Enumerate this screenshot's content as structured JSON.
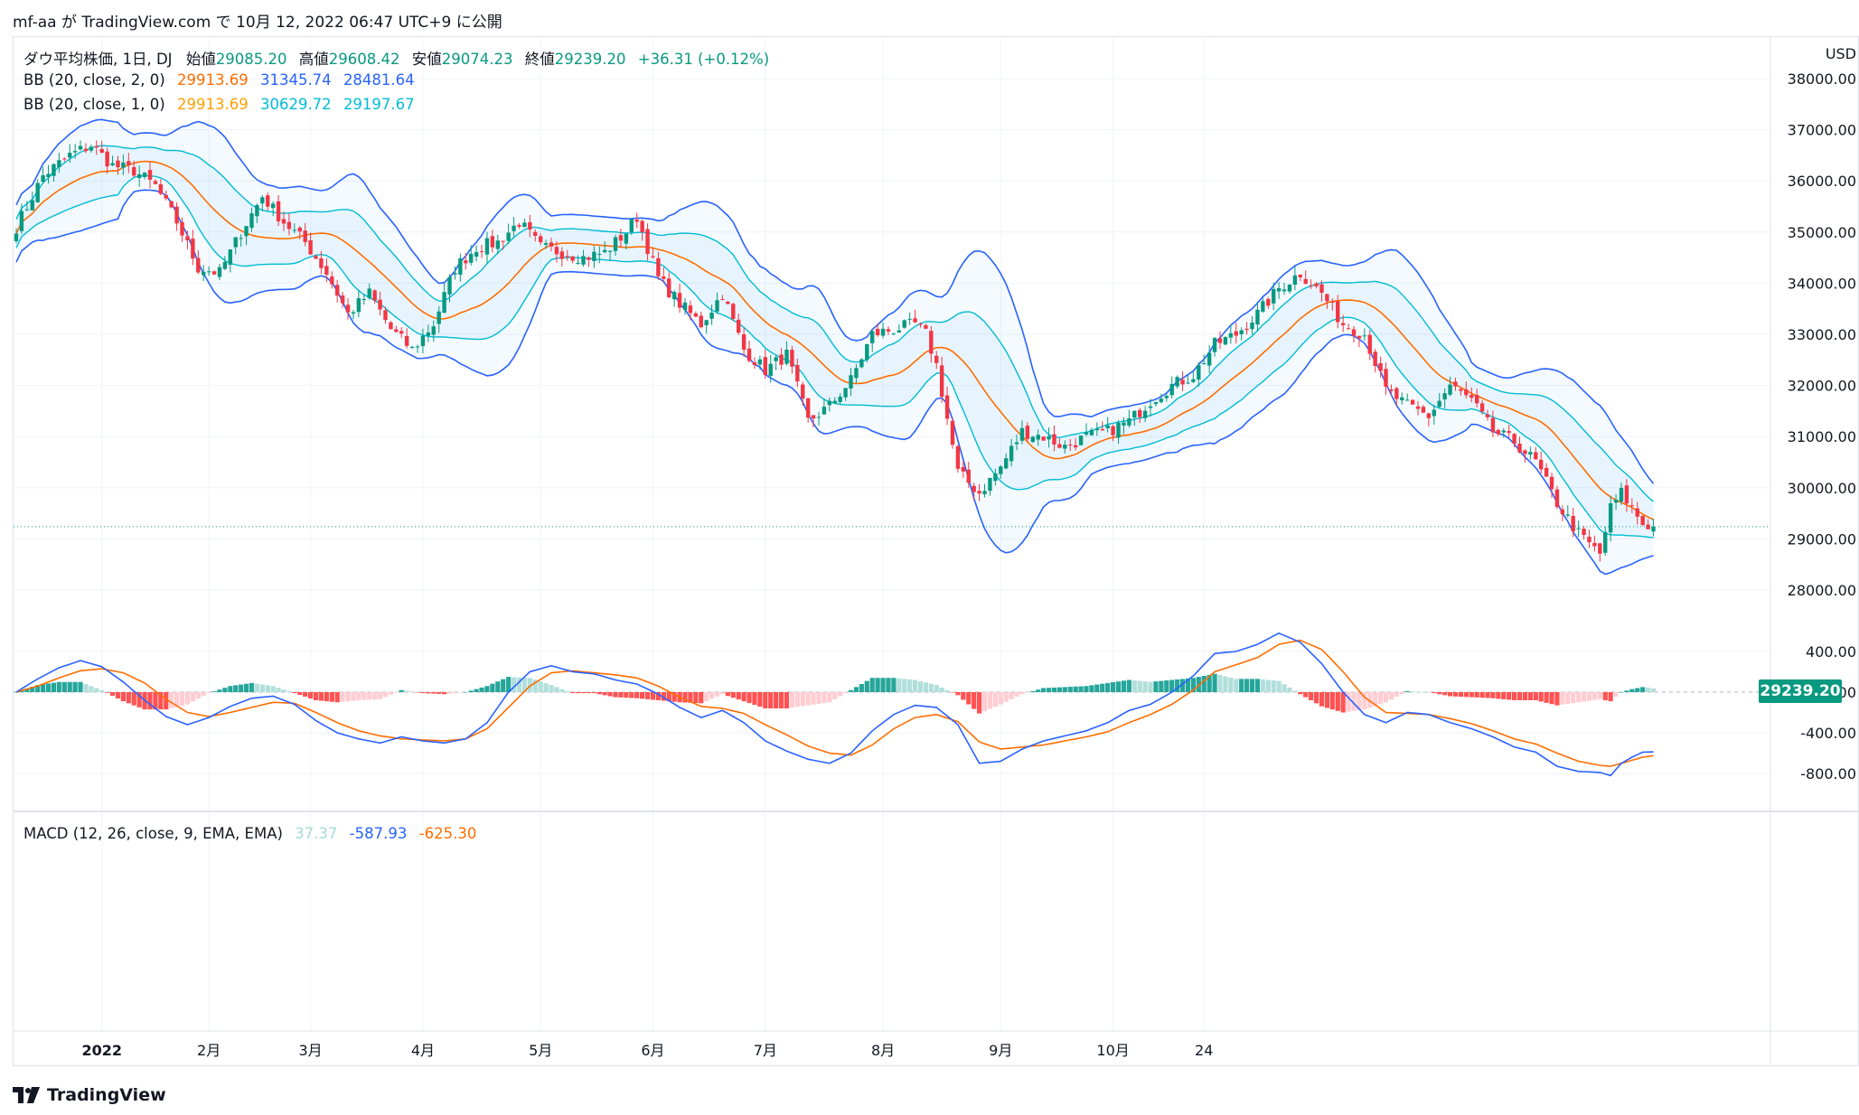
{
  "header": {
    "attribution": "mf-aa が TradingView.com で 10月 12, 2022 06:47 UTC+9 に公開"
  },
  "legend": {
    "symbol_line": {
      "title": "ダウ平均株価, 1日, DJ",
      "open_label": "始値",
      "open": "29085.20",
      "high_label": "高値",
      "high": "29608.42",
      "low_label": "安値",
      "low": "29074.23",
      "close_label": "終値",
      "close": "29239.20",
      "change": "+36.31 (+0.12%)"
    },
    "bb2": {
      "label": "BB (20, close, 2, 0)",
      "basis": "29913.69",
      "upper": "31345.74",
      "lower": "28481.64"
    },
    "bb1": {
      "label": "BB (20, close, 1, 0)",
      "basis": "29913.69",
      "upper": "30629.72",
      "lower": "29197.67"
    },
    "macd": {
      "label": "MACD (12, 26, close, 9, EMA, EMA)",
      "hist": "37.37",
      "macd": "-587.93",
      "signal": "-625.30"
    }
  },
  "price_axis": {
    "currency": "USD",
    "last_price": "29239.20"
  },
  "footer": {
    "brand": "TradingView"
  },
  "colors": {
    "up": "#089981",
    "down": "#f23645",
    "bb_outer": "#2962ff",
    "bb_basis": "#ff6d00",
    "bb_inner": "#00bcd4",
    "bb_inner_basis": "#ffa000",
    "macd_line": "#2962ff",
    "signal_line": "#ff6d00",
    "hist_up_strong": "#26a69a",
    "hist_up_weak": "#b2dfdb",
    "hist_down_strong": "#ff5252",
    "hist_down_weak": "#ffcdd2"
  },
  "chart_data": [
    {
      "type": "candlestick",
      "title": "ダウ平均株価, 1日, DJ",
      "y_ticks": [
        "38000.00",
        "37000.00",
        "36000.00",
        "35000.00",
        "34000.00",
        "33000.00",
        "32000.00",
        "31000.00",
        "30000.00",
        "29000.00",
        "28000.00"
      ],
      "ylim": [
        27800,
        38200
      ],
      "x_ticks": [
        "2022",
        "2月",
        "3月",
        "4月",
        "5月",
        "6月",
        "7月",
        "8月",
        "9月",
        "10月",
        "24"
      ],
      "close_keypoints": [
        [
          0,
          35100
        ],
        [
          5,
          36100
        ],
        [
          10,
          36500
        ],
        [
          14,
          36700
        ],
        [
          18,
          36300
        ],
        [
          22,
          36200
        ],
        [
          26,
          35900
        ],
        [
          30,
          35200
        ],
        [
          34,
          34300
        ],
        [
          38,
          34200
        ],
        [
          42,
          35000
        ],
        [
          46,
          35700
        ],
        [
          50,
          35200
        ],
        [
          54,
          34800
        ],
        [
          58,
          34200
        ],
        [
          62,
          33400
        ],
        [
          66,
          33800
        ],
        [
          70,
          33100
        ],
        [
          74,
          32700
        ],
        [
          78,
          33200
        ],
        [
          82,
          34300
        ],
        [
          86,
          34700
        ],
        [
          90,
          34800
        ],
        [
          94,
          35200
        ],
        [
          98,
          34700
        ],
        [
          102,
          34600
        ],
        [
          106,
          34500
        ],
        [
          110,
          34600
        ],
        [
          114,
          35000
        ],
        [
          116,
          35300
        ],
        [
          120,
          34100
        ],
        [
          124,
          33600
        ],
        [
          128,
          33200
        ],
        [
          132,
          33800
        ],
        [
          136,
          32700
        ],
        [
          140,
          32300
        ],
        [
          144,
          32600
        ],
        [
          148,
          31300
        ],
        [
          152,
          31600
        ],
        [
          156,
          32100
        ],
        [
          160,
          33000
        ],
        [
          164,
          33100
        ],
        [
          168,
          33200
        ],
        [
          170,
          33000
        ],
        [
          172,
          32400
        ],
        [
          176,
          30300
        ],
        [
          180,
          29900
        ],
        [
          184,
          30400
        ],
        [
          188,
          31100
        ],
        [
          192,
          31000
        ],
        [
          196,
          30800
        ],
        [
          200,
          31000
        ],
        [
          204,
          31100
        ],
        [
          208,
          31300
        ],
        [
          212,
          31700
        ],
        [
          216,
          32000
        ],
        [
          220,
          32200
        ],
        [
          224,
          32800
        ],
        [
          228,
          33000
        ],
        [
          232,
          33400
        ],
        [
          236,
          33900
        ],
        [
          240,
          34200
        ],
        [
          244,
          33800
        ],
        [
          248,
          33200
        ],
        [
          252,
          33000
        ],
        [
          256,
          31900
        ],
        [
          260,
          31600
        ],
        [
          264,
          31400
        ],
        [
          268,
          32000
        ],
        [
          272,
          31700
        ],
        [
          276,
          31100
        ],
        [
          280,
          30900
        ],
        [
          284,
          30500
        ],
        [
          288,
          29700
        ],
        [
          292,
          29100
        ],
        [
          296,
          28700
        ],
        [
          298,
          29600
        ],
        [
          300,
          29900
        ],
        [
          302,
          29600
        ],
        [
          304,
          29300
        ],
        [
          306,
          29239
        ]
      ]
    },
    {
      "type": "macd",
      "title": "MACD (12, 26, close, 9, EMA, EMA)",
      "y_ticks": [
        "400.00",
        "0.00",
        "-400.00",
        "-800.00"
      ],
      "ylim": [
        -900,
        650
      ],
      "macd_keypoints": [
        [
          0,
          0
        ],
        [
          4,
          130
        ],
        [
          8,
          240
        ],
        [
          12,
          310
        ],
        [
          16,
          250
        ],
        [
          20,
          100
        ],
        [
          24,
          -80
        ],
        [
          28,
          -240
        ],
        [
          32,
          -320
        ],
        [
          36,
          -250
        ],
        [
          40,
          -140
        ],
        [
          44,
          -60
        ],
        [
          48,
          -40
        ],
        [
          52,
          -120
        ],
        [
          56,
          -280
        ],
        [
          60,
          -400
        ],
        [
          64,
          -460
        ],
        [
          68,
          -500
        ],
        [
          72,
          -440
        ],
        [
          76,
          -480
        ],
        [
          80,
          -500
        ],
        [
          84,
          -460
        ],
        [
          88,
          -300
        ],
        [
          92,
          0
        ],
        [
          96,
          200
        ],
        [
          100,
          260
        ],
        [
          104,
          200
        ],
        [
          108,
          180
        ],
        [
          112,
          120
        ],
        [
          116,
          80
        ],
        [
          120,
          -20
        ],
        [
          124,
          -150
        ],
        [
          128,
          -250
        ],
        [
          132,
          -180
        ],
        [
          136,
          -300
        ],
        [
          140,
          -480
        ],
        [
          144,
          -580
        ],
        [
          148,
          -660
        ],
        [
          152,
          -700
        ],
        [
          156,
          -600
        ],
        [
          160,
          -380
        ],
        [
          164,
          -220
        ],
        [
          168,
          -130
        ],
        [
          172,
          -150
        ],
        [
          176,
          -320
        ],
        [
          180,
          -700
        ],
        [
          184,
          -680
        ],
        [
          188,
          -560
        ],
        [
          192,
          -480
        ],
        [
          196,
          -430
        ],
        [
          200,
          -380
        ],
        [
          204,
          -300
        ],
        [
          208,
          -180
        ],
        [
          212,
          -120
        ],
        [
          216,
          0
        ],
        [
          220,
          160
        ],
        [
          224,
          380
        ],
        [
          228,
          400
        ],
        [
          232,
          470
        ],
        [
          236,
          580
        ],
        [
          240,
          490
        ],
        [
          244,
          280
        ],
        [
          248,
          0
        ],
        [
          252,
          -220
        ],
        [
          256,
          -300
        ],
        [
          260,
          -200
        ],
        [
          264,
          -220
        ],
        [
          268,
          -300
        ],
        [
          272,
          -360
        ],
        [
          276,
          -440
        ],
        [
          280,
          -540
        ],
        [
          284,
          -590
        ],
        [
          288,
          -730
        ],
        [
          292,
          -780
        ],
        [
          296,
          -790
        ],
        [
          298,
          -820
        ],
        [
          300,
          -700
        ],
        [
          302,
          -640
        ],
        [
          304,
          -590
        ],
        [
          306,
          -588
        ]
      ],
      "signal_keypoints": [
        [
          0,
          0
        ],
        [
          4,
          60
        ],
        [
          8,
          140
        ],
        [
          12,
          210
        ],
        [
          16,
          230
        ],
        [
          20,
          190
        ],
        [
          24,
          90
        ],
        [
          28,
          -70
        ],
        [
          32,
          -200
        ],
        [
          36,
          -240
        ],
        [
          40,
          -200
        ],
        [
          44,
          -150
        ],
        [
          48,
          -100
        ],
        [
          52,
          -110
        ],
        [
          56,
          -200
        ],
        [
          60,
          -300
        ],
        [
          64,
          -380
        ],
        [
          68,
          -430
        ],
        [
          72,
          -460
        ],
        [
          76,
          -470
        ],
        [
          80,
          -480
        ],
        [
          84,
          -460
        ],
        [
          88,
          -360
        ],
        [
          92,
          -150
        ],
        [
          96,
          60
        ],
        [
          100,
          190
        ],
        [
          104,
          210
        ],
        [
          108,
          190
        ],
        [
          112,
          170
        ],
        [
          116,
          140
        ],
        [
          120,
          60
        ],
        [
          124,
          -50
        ],
        [
          128,
          -140
        ],
        [
          132,
          -160
        ],
        [
          136,
          -210
        ],
        [
          140,
          -320
        ],
        [
          144,
          -420
        ],
        [
          148,
          -530
        ],
        [
          152,
          -600
        ],
        [
          156,
          -620
        ],
        [
          160,
          -520
        ],
        [
          164,
          -360
        ],
        [
          168,
          -250
        ],
        [
          172,
          -220
        ],
        [
          176,
          -290
        ],
        [
          180,
          -490
        ],
        [
          184,
          -560
        ],
        [
          188,
          -540
        ],
        [
          192,
          -520
        ],
        [
          196,
          -480
        ],
        [
          200,
          -440
        ],
        [
          204,
          -390
        ],
        [
          208,
          -300
        ],
        [
          212,
          -220
        ],
        [
          216,
          -120
        ],
        [
          220,
          20
        ],
        [
          224,
          200
        ],
        [
          228,
          270
        ],
        [
          232,
          340
        ],
        [
          236,
          470
        ],
        [
          240,
          510
        ],
        [
          244,
          420
        ],
        [
          248,
          200
        ],
        [
          252,
          -50
        ],
        [
          256,
          -200
        ],
        [
          260,
          -210
        ],
        [
          264,
          -220
        ],
        [
          268,
          -260
        ],
        [
          272,
          -310
        ],
        [
          276,
          -380
        ],
        [
          280,
          -460
        ],
        [
          284,
          -510
        ],
        [
          288,
          -600
        ],
        [
          292,
          -680
        ],
        [
          296,
          -720
        ],
        [
          298,
          -730
        ],
        [
          300,
          -700
        ],
        [
          302,
          -670
        ],
        [
          304,
          -640
        ],
        [
          306,
          -625
        ]
      ]
    }
  ]
}
